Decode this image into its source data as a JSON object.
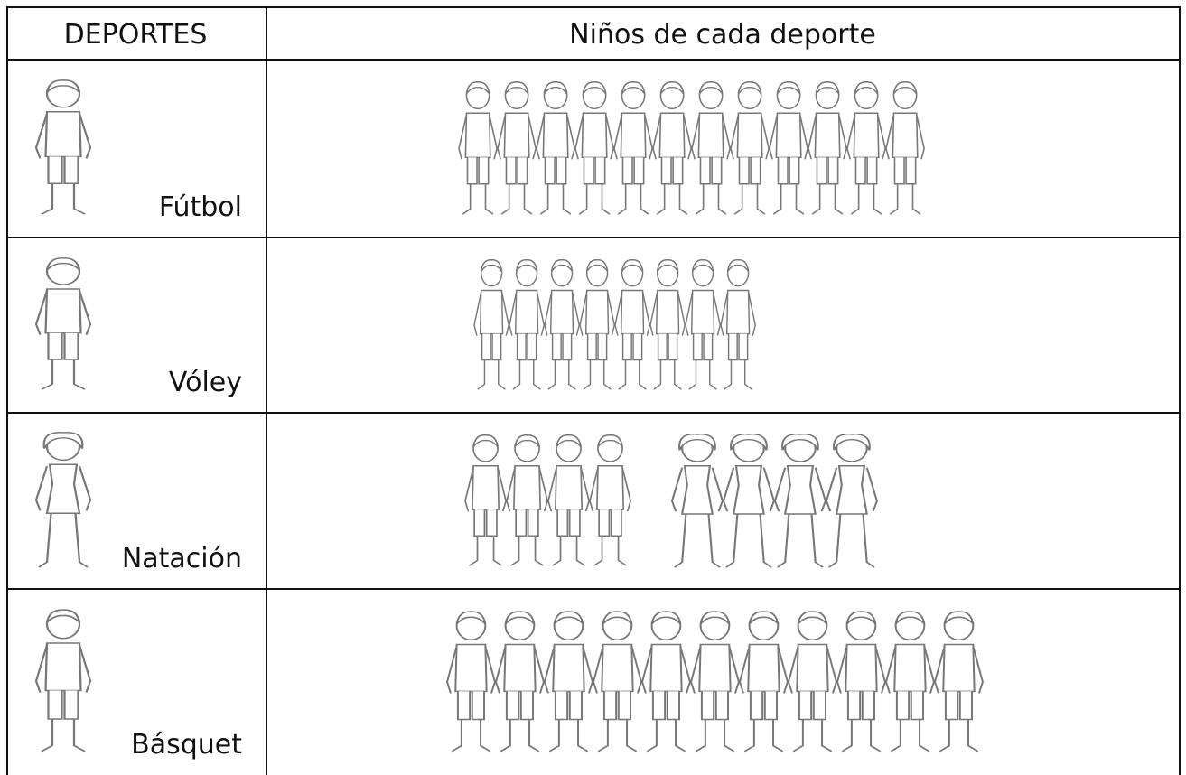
{
  "table": {
    "header": [
      "DEPORTES",
      "Niños de cada deporte"
    ],
    "rows": [
      {
        "sport": "Fútbol",
        "groups": [
          12
        ]
      },
      {
        "sport": "Vóley",
        "groups": [
          8
        ]
      },
      {
        "sport": "Natación",
        "groups": [
          4,
          4
        ]
      },
      {
        "sport": "Básquet",
        "groups": [
          11
        ]
      }
    ]
  }
}
